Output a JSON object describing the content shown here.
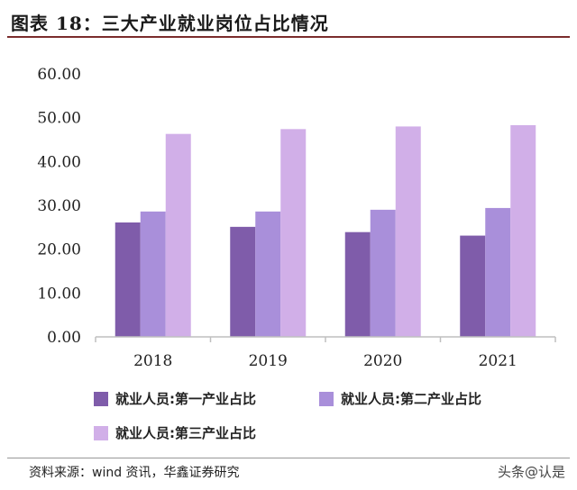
{
  "figure": {
    "title": "图表 18：三大产业就业岗位占比情况",
    "source": "资料来源：wind 资讯，华鑫证券研究",
    "watermark": "头条@认是"
  },
  "colors": {
    "series1": "#7f5caa",
    "series2": "#a98fda",
    "series3": "#d1afe8",
    "axis": "#bfbfbf",
    "title_rule": "#7b2c2c"
  },
  "chart_data": {
    "type": "bar",
    "title": "",
    "xlabel": "",
    "ylabel": "",
    "categories": [
      "2018",
      "2019",
      "2020",
      "2021"
    ],
    "series": [
      {
        "name": "就业人员:第一产业占比",
        "values": [
          26.1,
          25.1,
          23.9,
          23.1
        ]
      },
      {
        "name": "就业人员:第二产业占比",
        "values": [
          28.6,
          28.6,
          29.0,
          29.4
        ]
      },
      {
        "name": "就业人员:第三产业占比",
        "values": [
          46.3,
          47.4,
          48.0,
          48.3
        ]
      }
    ],
    "ylim": [
      0,
      60
    ],
    "yticks": [
      "0.00",
      "10.00",
      "20.00",
      "30.00",
      "40.00",
      "50.00",
      "60.00"
    ],
    "grid": false,
    "legend": "bottom"
  }
}
